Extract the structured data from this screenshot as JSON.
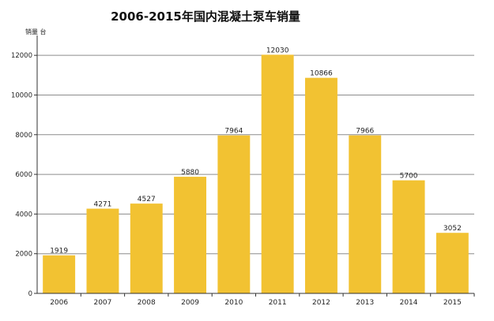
{
  "chart_data": {
    "type": "bar",
    "title": "2006-2015年国内混凝土泵车销量",
    "ylabel": "销量 台",
    "xlabel": "",
    "categories": [
      "2006",
      "2007",
      "2008",
      "2009",
      "2010",
      "2011",
      "2012",
      "2013",
      "2014",
      "2015"
    ],
    "values": [
      1919,
      4271,
      4527,
      5880,
      7964,
      12030,
      10866,
      7966,
      5700,
      3052
    ],
    "ylim": [
      0,
      13000
    ],
    "yticks": [
      0,
      2000,
      4000,
      6000,
      8000,
      10000,
      12000
    ],
    "grid": true,
    "bar_color": "#f2c232",
    "grid_color": "#8c8c8c"
  }
}
